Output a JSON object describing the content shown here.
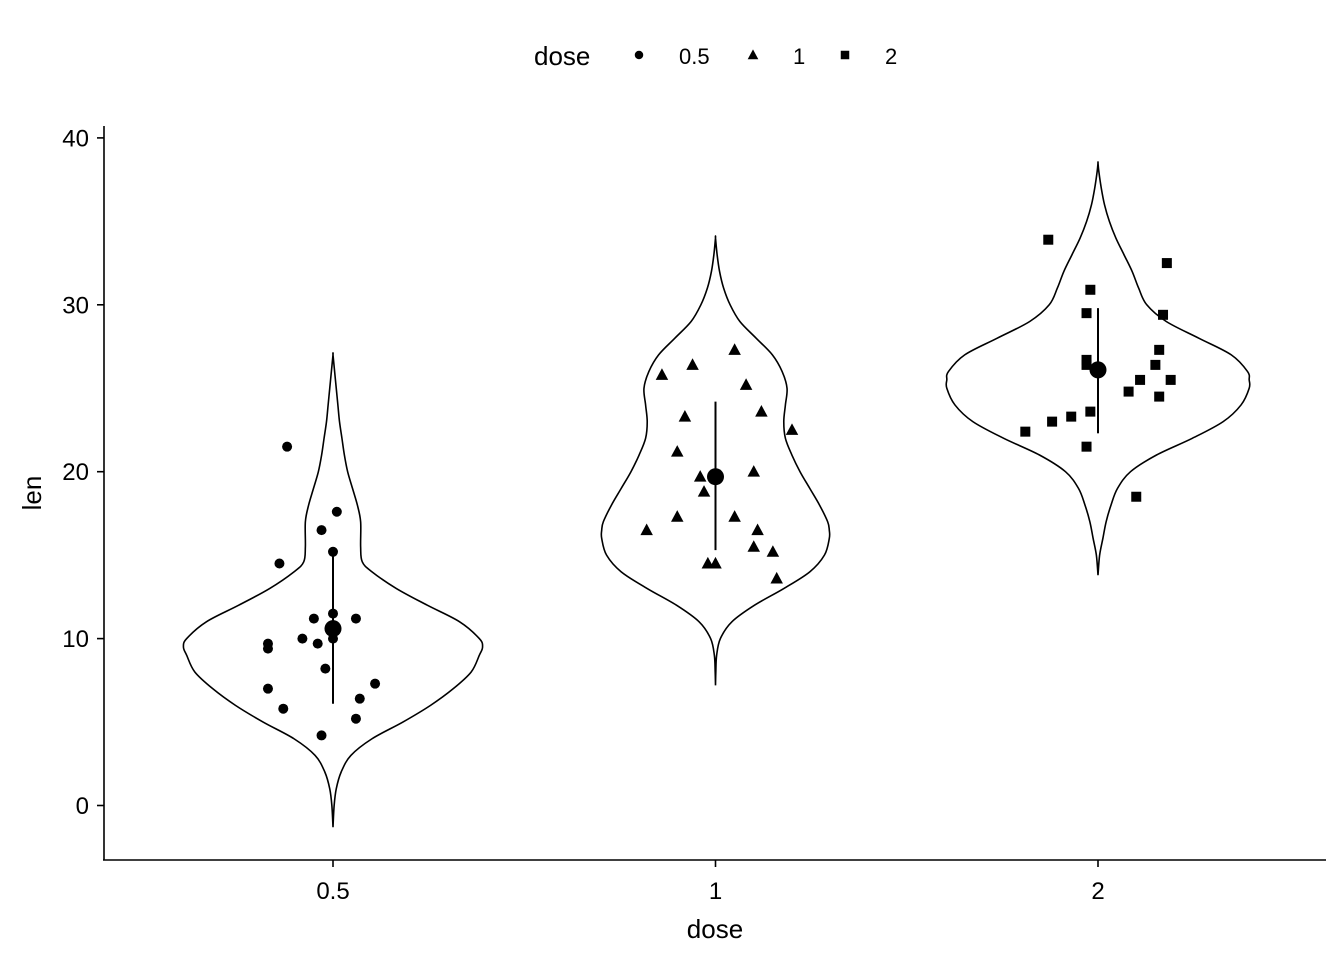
{
  "chart_data": {
    "type": "violin",
    "xlabel": "dose",
    "ylabel": "len",
    "ylim": [
      -3,
      41
    ],
    "y_ticks": [
      "0",
      "10",
      "20",
      "30",
      "40"
    ],
    "categories": [
      "0.5",
      "1",
      "2"
    ],
    "legend": {
      "title": "dose",
      "position": "top",
      "entries": [
        {
          "label": "0.5",
          "shape": "circle"
        },
        {
          "label": "1",
          "shape": "triangle"
        },
        {
          "label": "2",
          "shape": "square"
        }
      ]
    },
    "grid": false,
    "groups": [
      {
        "name": "0.5",
        "shape": "circle",
        "mean": 10.6,
        "sd_range": [
          6.1,
          15.1
        ],
        "violin": {
          "y": [
            -1.3,
            0,
            1,
            2,
            3,
            4,
            5,
            6,
            7,
            8,
            9,
            9.5,
            10,
            11,
            12,
            13,
            14,
            14.6,
            15.5,
            17,
            18,
            19,
            20,
            21,
            22,
            23,
            24,
            25,
            26,
            27
          ],
          "half_width": [
            0,
            0.007,
            0.02,
            0.05,
            0.11,
            0.24,
            0.43,
            0.6,
            0.74,
            0.85,
            0.9,
            0.92,
            0.9,
            0.78,
            0.58,
            0.39,
            0.24,
            0.18,
            0.17,
            0.17,
            0.15,
            0.12,
            0.09,
            0.07,
            0.055,
            0.04,
            0.03,
            0.02,
            0.01,
            0
          ]
        },
        "points": [
          {
            "x": -0.12,
            "y": 21.5
          },
          {
            "x": 0.01,
            "y": 17.6
          },
          {
            "x": -0.03,
            "y": 16.5
          },
          {
            "x": 0.0,
            "y": 15.2
          },
          {
            "x": -0.14,
            "y": 14.5
          },
          {
            "x": 0.0,
            "y": 11.5
          },
          {
            "x": -0.05,
            "y": 11.2
          },
          {
            "x": 0.06,
            "y": 11.2
          },
          {
            "x": -0.08,
            "y": 10.0
          },
          {
            "x": 0.0,
            "y": 10.0
          },
          {
            "x": -0.17,
            "y": 9.7
          },
          {
            "x": -0.17,
            "y": 9.4
          },
          {
            "x": -0.04,
            "y": 9.7
          },
          {
            "x": -0.02,
            "y": 8.2
          },
          {
            "x": 0.11,
            "y": 7.3
          },
          {
            "x": -0.17,
            "y": 7.0
          },
          {
            "x": 0.07,
            "y": 6.4
          },
          {
            "x": -0.13,
            "y": 5.8
          },
          {
            "x": 0.06,
            "y": 5.2
          },
          {
            "x": -0.03,
            "y": 4.2
          }
        ]
      },
      {
        "name": "1",
        "shape": "triangle",
        "mean": 19.7,
        "sd_range": [
          15.3,
          24.2
        ],
        "violin": {
          "y": [
            7.2,
            8,
            9,
            10,
            11,
            12,
            13,
            14,
            15,
            16,
            16.5,
            17,
            18,
            19,
            20,
            21,
            22,
            23,
            24,
            25,
            26,
            27,
            28,
            29,
            30,
            31,
            32,
            33,
            34
          ],
          "half_width": [
            0,
            0.002,
            0.007,
            0.03,
            0.1,
            0.24,
            0.42,
            0.58,
            0.67,
            0.7,
            0.7,
            0.69,
            0.64,
            0.58,
            0.52,
            0.47,
            0.43,
            0.42,
            0.43,
            0.44,
            0.41,
            0.35,
            0.25,
            0.15,
            0.09,
            0.05,
            0.025,
            0.01,
            0
          ]
        },
        "points": [
          {
            "x": 0.05,
            "y": 27.3
          },
          {
            "x": -0.06,
            "y": 26.4
          },
          {
            "x": -0.14,
            "y": 25.8
          },
          {
            "x": 0.08,
            "y": 25.2
          },
          {
            "x": 0.12,
            "y": 23.6
          },
          {
            "x": -0.08,
            "y": 23.3
          },
          {
            "x": 0.2,
            "y": 22.5
          },
          {
            "x": -0.1,
            "y": 21.2
          },
          {
            "x": 0.1,
            "y": 20.0
          },
          {
            "x": -0.04,
            "y": 19.7
          },
          {
            "x": -0.03,
            "y": 18.8
          },
          {
            "x": 0.05,
            "y": 17.3
          },
          {
            "x": -0.1,
            "y": 17.3
          },
          {
            "x": -0.18,
            "y": 16.5
          },
          {
            "x": 0.11,
            "y": 16.5
          },
          {
            "x": 0.1,
            "y": 15.5
          },
          {
            "x": 0.15,
            "y": 15.2
          },
          {
            "x": -0.02,
            "y": 14.5
          },
          {
            "x": 0.0,
            "y": 14.5
          },
          {
            "x": 0.16,
            "y": 13.6
          }
        ]
      },
      {
        "name": "2",
        "shape": "square",
        "mean": 26.1,
        "sd_range": [
          22.3,
          29.8
        ],
        "violin": {
          "y": [
            13.8,
            15,
            16,
            17,
            18,
            19,
            20,
            21,
            22,
            23,
            24,
            25,
            25.5,
            26,
            27,
            28,
            29,
            30,
            31,
            32,
            33,
            34,
            35,
            36,
            37,
            38,
            38.5
          ],
          "half_width": [
            0,
            0.01,
            0.03,
            0.05,
            0.08,
            0.12,
            0.2,
            0.36,
            0.58,
            0.77,
            0.88,
            0.93,
            0.93,
            0.92,
            0.82,
            0.62,
            0.42,
            0.3,
            0.25,
            0.21,
            0.16,
            0.11,
            0.07,
            0.04,
            0.02,
            0.005,
            0
          ]
        },
        "points": [
          {
            "x": -0.13,
            "y": 33.9
          },
          {
            "x": 0.18,
            "y": 32.5
          },
          {
            "x": -0.02,
            "y": 30.9
          },
          {
            "x": -0.03,
            "y": 29.5
          },
          {
            "x": 0.17,
            "y": 29.4
          },
          {
            "x": 0.16,
            "y": 27.3
          },
          {
            "x": -0.03,
            "y": 26.7
          },
          {
            "x": -0.03,
            "y": 26.4
          },
          {
            "x": 0.15,
            "y": 26.4
          },
          {
            "x": 0.11,
            "y": 25.5
          },
          {
            "x": 0.19,
            "y": 25.5
          },
          {
            "x": 0.08,
            "y": 24.8
          },
          {
            "x": 0.16,
            "y": 24.5
          },
          {
            "x": -0.02,
            "y": 23.6
          },
          {
            "x": -0.07,
            "y": 23.3
          },
          {
            "x": -0.12,
            "y": 23.0
          },
          {
            "x": -0.19,
            "y": 22.4
          },
          {
            "x": -0.03,
            "y": 21.5
          },
          {
            "x": 0.1,
            "y": 18.5
          }
        ]
      }
    ]
  }
}
